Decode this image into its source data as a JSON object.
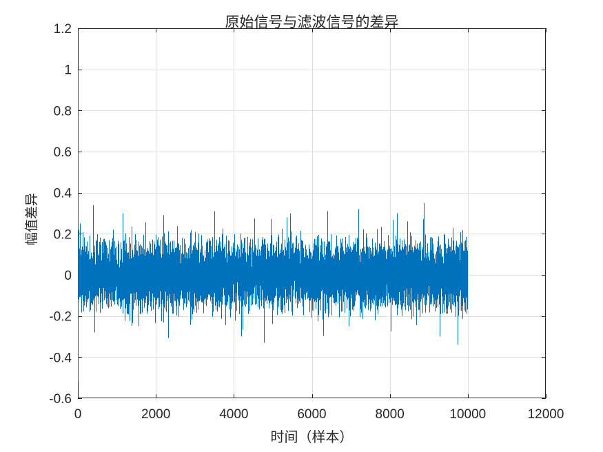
{
  "figure": {
    "background": "#ffffff"
  },
  "chart_data": {
    "type": "line",
    "title": "原始信号与滤波信号的差异",
    "xlabel": "时间（样本）",
    "ylabel": "幅值差异",
    "xlim": [
      0,
      12000
    ],
    "ylim": [
      -0.6,
      1.2
    ],
    "xticks": [
      0,
      2000,
      4000,
      6000,
      8000,
      10000,
      12000
    ],
    "xtick_labels": [
      "0",
      "2000",
      "4000",
      "6000",
      "8000",
      "10000",
      "12000"
    ],
    "yticks": [
      -0.6,
      -0.4,
      -0.2,
      0,
      0.2,
      0.4,
      0.6,
      0.8,
      1,
      1.2
    ],
    "ytick_labels": [
      "-0.6",
      "-0.4",
      "-0.2",
      "0",
      "0.2",
      "0.4",
      "0.6",
      "0.8",
      "1",
      "1.2"
    ],
    "grid": true,
    "legend": "none",
    "line_color": "#0072BD",
    "axis_color": "#262626",
    "grid_color": "#e0e0e0",
    "signal": {
      "description": "Dense noise-like difference signal occupying samples 0 to 10000; solid band roughly ±0.15 with frequent spikes to ±0.25 and rare spikes to ±0.35; large filter-transient spike at sample 0.",
      "n_samples": 10000,
      "x_extent": [
        0,
        10000
      ],
      "dense_band": [
        -0.2,
        0.2
      ],
      "noise_std": 0.075,
      "seed": 1371,
      "initial_transient": {
        "x": 0,
        "min": -0.52,
        "max": 1.0
      },
      "notable_spikes": [
        {
          "x": 60,
          "value": 0.25
        },
        {
          "x": 390,
          "value": 0.34
        },
        {
          "x": 430,
          "value": -0.28
        },
        {
          "x": 1150,
          "value": 0.3
        },
        {
          "x": 2200,
          "value": 0.29
        },
        {
          "x": 3500,
          "value": 0.31
        },
        {
          "x": 4200,
          "value": -0.3
        },
        {
          "x": 4770,
          "value": -0.33
        },
        {
          "x": 5450,
          "value": 0.3
        },
        {
          "x": 6400,
          "value": 0.31
        },
        {
          "x": 7200,
          "value": 0.32
        },
        {
          "x": 8890,
          "value": 0.35
        },
        {
          "x": 9300,
          "value": -0.3
        },
        {
          "x": 9750,
          "value": -0.34
        }
      ]
    }
  }
}
